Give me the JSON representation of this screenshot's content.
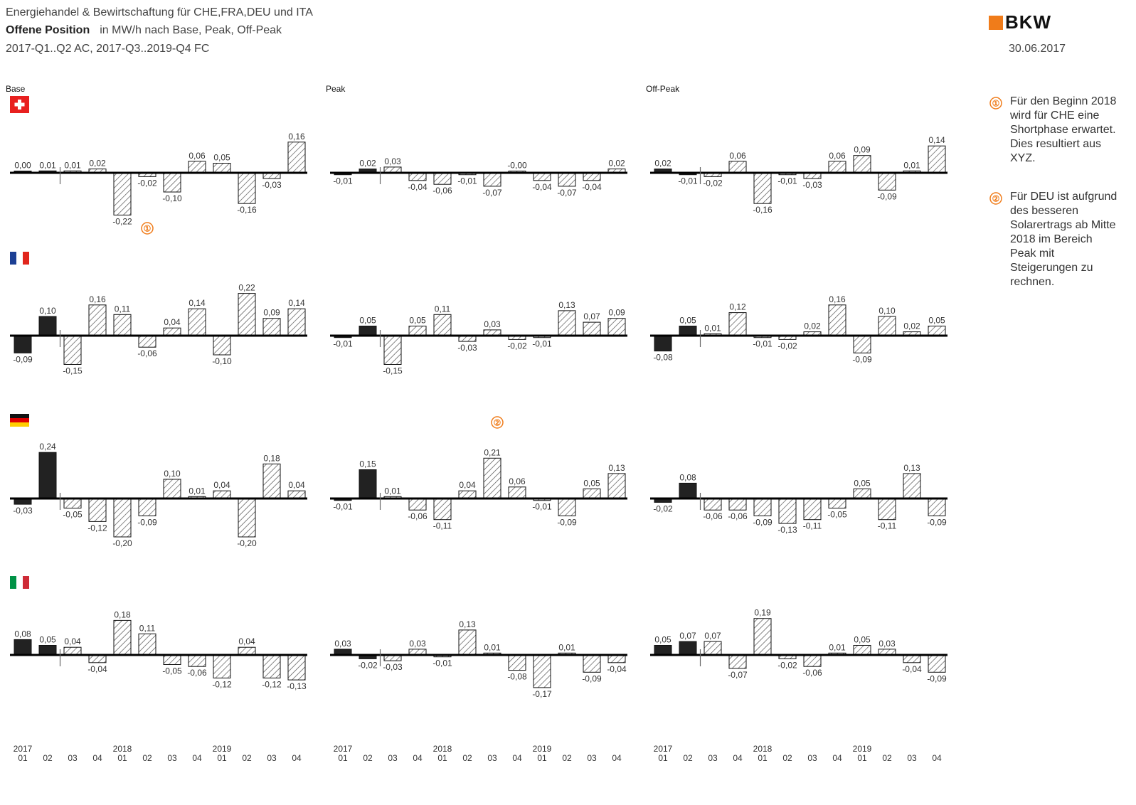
{
  "header": {
    "line1": "Energiehandel & Bewirtschaftung für CHE,FRA,DEU und ITA",
    "line2_bold": "Offene Position",
    "line2_rest": "in MW/h nach Base, Peak, Off-Peak",
    "line3": "2017-Q1..Q2 AC, 2017-Q3..2019-Q4 FC"
  },
  "logo_text": "BKW",
  "date": "30.06.2017",
  "notes": [
    {
      "marker": "①",
      "text": "Für den Beginn 2018 wird für CHE eine Shortphase erwartet. Dies resultiert aus XYZ."
    },
    {
      "marker": "②",
      "text": "Für DEU ist aufgrund des besseren Solarertrags ab Mitte 2018 im Bereich Peak mit Steigerungen zu rechnen."
    }
  ],
  "colors": {
    "accent": "#f07c1a",
    "actual_bar": "#222222",
    "forecast_hatch": "#555555",
    "axis": "#000000"
  },
  "flags": [
    {
      "country": "CHE",
      "icon": "swiss-flag-icon"
    },
    {
      "country": "FRA",
      "icon": "french-flag-icon"
    },
    {
      "country": "DEU",
      "icon": "german-flag-icon"
    },
    {
      "country": "ITA",
      "icon": "italian-flag-icon"
    }
  ],
  "chart_data": {
    "type": "bar",
    "column_titles": [
      "Base",
      "Peak",
      "Off-Peak"
    ],
    "rows": [
      "CHE",
      "FRA",
      "DEU",
      "ITA"
    ],
    "categories": [
      "2017 Q1",
      "2017 Q2",
      "2017 Q3",
      "2017 Q4",
      "2018 Q1",
      "2018 Q2",
      "2018 Q3",
      "2018 Q4",
      "2019 Q1",
      "2019 Q2",
      "2019 Q3",
      "2019 Q4"
    ],
    "x_tick_years": [
      "2017",
      "2018",
      "2019"
    ],
    "x_tick_quarters": [
      "01",
      "02",
      "03",
      "04",
      "01",
      "02",
      "03",
      "04",
      "01",
      "02",
      "03",
      "04"
    ],
    "actual_periods": 2,
    "panels": [
      {
        "row": "CHE",
        "column": "Base",
        "values": [
          0.0,
          0.01,
          0.01,
          0.02,
          -0.22,
          -0.02,
          -0.1,
          0.06,
          0.05,
          -0.16,
          -0.03,
          0.16
        ],
        "labels": [
          "0,00",
          "0,01",
          "0,01",
          "0,02",
          "-0,22",
          "-0,02",
          "-0,10",
          "0,06",
          "0,05",
          "-0,16",
          "-0,03",
          "0,16"
        ]
      },
      {
        "row": "CHE",
        "column": "Peak",
        "values": [
          -0.01,
          0.02,
          0.03,
          -0.04,
          -0.06,
          -0.01,
          -0.07,
          -0.0,
          -0.04,
          -0.07,
          -0.04,
          0.02
        ],
        "labels": [
          "-0,01",
          "0,02",
          "0,03",
          "-0,04",
          "-0,06",
          "-0,01",
          "-0,07",
          "-0,00",
          "-0,04",
          "-0,07",
          "-0,04",
          "0,02"
        ]
      },
      {
        "row": "CHE",
        "column": "Off-Peak",
        "values": [
          0.02,
          -0.01,
          -0.02,
          0.06,
          -0.16,
          -0.01,
          -0.03,
          0.06,
          0.09,
          -0.09,
          0.01,
          0.14
        ],
        "labels": [
          "0,02",
          "-0,01",
          "-0,02",
          "0,06",
          "-0,16",
          "-0,01",
          "-0,03",
          "0,06",
          "0,09",
          "-0,09",
          "0,01",
          "0,14"
        ]
      },
      {
        "row": "FRA",
        "column": "Base",
        "values": [
          -0.09,
          0.1,
          -0.15,
          0.16,
          0.11,
          -0.06,
          0.04,
          0.14,
          -0.1,
          0.22,
          0.09,
          0.14
        ],
        "labels": [
          "-0,09",
          "0,10",
          "-0,15",
          "0,16",
          "0,11",
          "-0,06",
          "0,04",
          "0,14",
          "-0,10",
          "0,22",
          "0,09",
          "0,14"
        ]
      },
      {
        "row": "FRA",
        "column": "Peak",
        "values": [
          -0.01,
          0.05,
          -0.15,
          0.05,
          0.11,
          -0.03,
          0.03,
          -0.02,
          -0.01,
          0.13,
          0.07,
          0.09
        ],
        "labels": [
          "-0,01",
          "0,05",
          "-0,15",
          "0,05",
          "0,11",
          "-0,03",
          "0,03",
          "-0,02",
          "-0,01",
          "0,13",
          "0,07",
          "0,09"
        ]
      },
      {
        "row": "FRA",
        "column": "Off-Peak",
        "values": [
          -0.08,
          0.05,
          0.01,
          0.12,
          -0.01,
          -0.02,
          0.02,
          0.16,
          -0.09,
          0.1,
          0.02,
          0.05
        ],
        "labels": [
          "-0,08",
          "0,05",
          "0,01",
          "0,12",
          "-0,01",
          "-0,02",
          "0,02",
          "0,16",
          "-0,09",
          "0,10",
          "0,02",
          "0,05"
        ]
      },
      {
        "row": "DEU",
        "column": "Base",
        "values": [
          -0.03,
          0.24,
          -0.05,
          -0.12,
          -0.2,
          -0.09,
          0.1,
          0.01,
          0.04,
          -0.2,
          0.18,
          0.04
        ],
        "labels": [
          "-0,03",
          "0,24",
          "-0,05",
          "-0,12",
          "-0,20",
          "-0,09",
          "0,10",
          "0,01",
          "0,04",
          "-0,20",
          "0,18",
          "0,04"
        ]
      },
      {
        "row": "DEU",
        "column": "Peak",
        "values": [
          -0.01,
          0.15,
          0.01,
          -0.06,
          -0.11,
          0.04,
          0.21,
          0.06,
          -0.01,
          -0.09,
          0.05,
          0.13
        ],
        "labels": [
          "-0,01",
          "0,15",
          "0,01",
          "-0,06",
          "-0,11",
          "0,04",
          "0,21",
          "0,06",
          "-0,01",
          "-0,09",
          "0,05",
          "0,13"
        ]
      },
      {
        "row": "DEU",
        "column": "Off-Peak",
        "values": [
          -0.02,
          0.08,
          -0.06,
          -0.06,
          -0.09,
          -0.13,
          -0.11,
          -0.05,
          0.05,
          -0.11,
          0.13,
          -0.09
        ],
        "labels": [
          "-0,02",
          "0,08",
          "-0,06",
          "-0,06",
          "-0,09",
          "-0,13",
          "-0,11",
          "-0,05",
          "0,05",
          "-0,11",
          "0,13",
          "-0,09"
        ]
      },
      {
        "row": "ITA",
        "column": "Base",
        "values": [
          0.08,
          0.05,
          0.04,
          -0.04,
          0.18,
          0.11,
          -0.05,
          -0.06,
          -0.12,
          0.04,
          -0.12,
          -0.13
        ],
        "labels": [
          "0,08",
          "0,05",
          "0,04",
          "-0,04",
          "0,18",
          "0,11",
          "-0,05",
          "-0,06",
          "-0,12",
          "0,04",
          "-0,12",
          "-0,13"
        ]
      },
      {
        "row": "ITA",
        "column": "Peak",
        "values": [
          0.03,
          -0.02,
          -0.03,
          0.03,
          -0.01,
          0.13,
          0.01,
          -0.08,
          -0.17,
          0.01,
          -0.09,
          -0.04
        ],
        "labels": [
          "0,03",
          "-0,02",
          "-0,03",
          "0,03",
          "-0,01",
          "0,13",
          "0,01",
          "-0,08",
          "-0,17",
          "0,01",
          "-0,09",
          "-0,04"
        ]
      },
      {
        "row": "ITA",
        "column": "Off-Peak",
        "values": [
          0.05,
          0.07,
          0.07,
          -0.07,
          0.19,
          -0.02,
          -0.06,
          0.01,
          0.05,
          0.03,
          -0.04,
          -0.09
        ],
        "labels": [
          "0,05",
          "0,07",
          "0,07",
          "-0,07",
          "0,19",
          "-0,02",
          "-0,06",
          "0,01",
          "0,05",
          "0,03",
          "-0,04",
          "-0,09"
        ]
      }
    ]
  }
}
